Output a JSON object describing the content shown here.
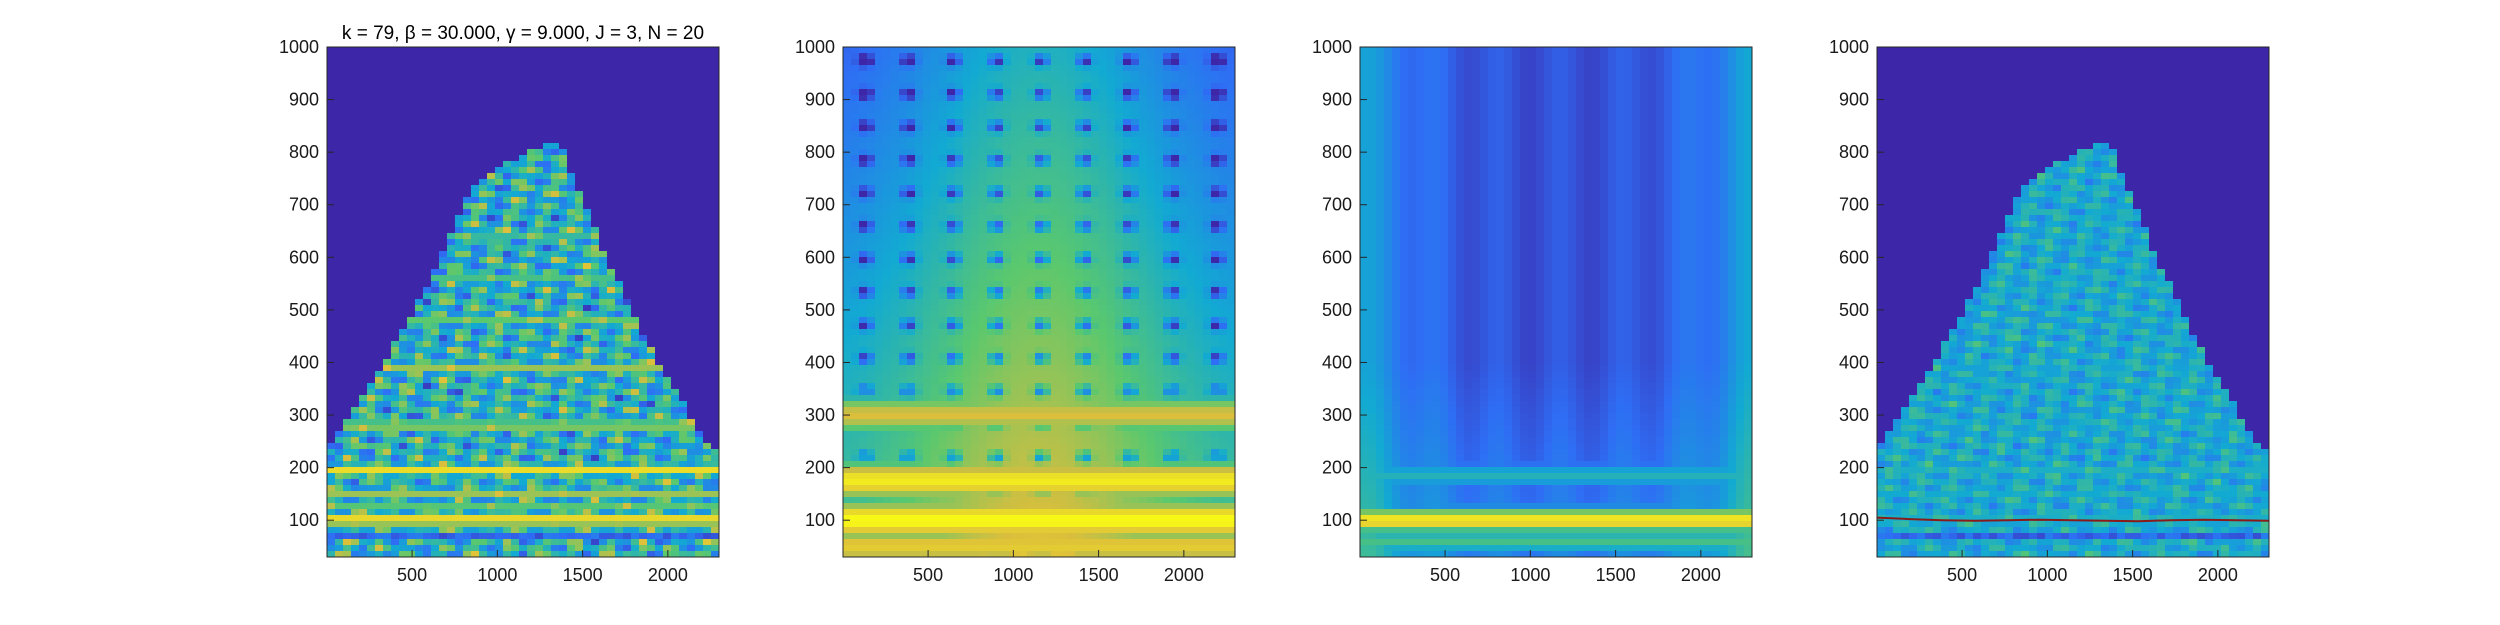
{
  "figure": {
    "title": "k = 79, β = 30.000, γ = 9.000, J = 3, N = 20"
  },
  "colors": {
    "low": "#3e26a8",
    "mid_low": "#2e87f7",
    "mid": "#1ab7b9",
    "mid_high": "#9dc937",
    "high": "#f9fb15"
  },
  "chart_data": [
    {
      "type": "heatmap",
      "panel": "panel-1",
      "title": "k = 79, β = 30.000, γ = 9.000, J = 3, N = 20",
      "xlabel": "",
      "ylabel": "",
      "xlim": [
        1,
        2300
      ],
      "ylim": [
        30,
        1000
      ],
      "xticks": [
        500,
        1000,
        1500,
        2000
      ],
      "yticks": [
        100,
        200,
        300,
        400,
        500,
        600,
        700,
        800,
        900,
        1000
      ],
      "colormap": "parula",
      "description_pattern": "pyramid",
      "bands": [
        {
          "y": 70,
          "level": 0.2
        },
        {
          "y": 85,
          "level": 0.4
        },
        {
          "y": 100,
          "level": 1.0
        },
        {
          "y": 125,
          "level": 0.6
        },
        {
          "y": 150,
          "level": 0.7
        },
        {
          "y": 195,
          "level": 0.9
        },
        {
          "y": 280,
          "level": 0.75
        },
        {
          "y": 390,
          "level": 0.7
        },
        {
          "y": 480,
          "level": 0.6
        },
        {
          "y": 560,
          "level": 0.55
        },
        {
          "y": 640,
          "level": 0.5
        }
      ]
    },
    {
      "type": "heatmap",
      "panel": "panel-2",
      "title": "",
      "xlabel": "",
      "ylabel": "",
      "xlim": [
        1,
        2300
      ],
      "ylim": [
        30,
        1000
      ],
      "xticks": [
        500,
        1000,
        1500,
        2000
      ],
      "yticks": [
        100,
        200,
        300,
        400,
        500,
        600,
        700,
        800,
        900,
        1000
      ],
      "colormap": "parula",
      "description_pattern": "smooth",
      "bands": [
        {
          "y": 50,
          "level": 0.85
        },
        {
          "y": 100,
          "level": 1.0
        },
        {
          "y": 175,
          "level": 0.95
        },
        {
          "y": 300,
          "level": 0.8
        }
      ]
    },
    {
      "type": "heatmap",
      "panel": "panel-3",
      "title": "",
      "xlabel": "",
      "ylabel": "",
      "xlim": [
        1,
        2300
      ],
      "ylim": [
        30,
        1000
      ],
      "xticks": [
        500,
        1000,
        1500,
        2000
      ],
      "yticks": [
        100,
        200,
        300,
        400,
        500,
        600,
        700,
        800,
        900,
        1000
      ],
      "colormap": "parula",
      "description_pattern": "vertical-fade",
      "bands": [
        {
          "y": 60,
          "level": 0.55
        },
        {
          "y": 100,
          "level": 0.95
        },
        {
          "y": 185,
          "level": 0.45
        }
      ]
    },
    {
      "type": "heatmap",
      "panel": "panel-4",
      "title": "",
      "xlabel": "",
      "ylabel": "",
      "xlim": [
        1,
        2300
      ],
      "ylim": [
        30,
        1000
      ],
      "xticks": [
        500,
        1000,
        1500,
        2000
      ],
      "yticks": [
        100,
        200,
        300,
        400,
        500,
        600,
        700,
        800,
        900,
        1000
      ],
      "colormap": "parula",
      "description_pattern": "pyramid-dim",
      "ridge_line": {
        "color": "#8b1a1a",
        "y": [
          105,
          102,
          100,
          99,
          100,
          101,
          100,
          99,
          98,
          100,
          101,
          100,
          99
        ]
      },
      "bands": [
        {
          "y": 70,
          "level": 0.15
        },
        {
          "y": 100,
          "level": 0.55
        },
        {
          "y": 150,
          "level": 0.45
        },
        {
          "y": 195,
          "level": 0.5
        },
        {
          "y": 280,
          "level": 0.4
        },
        {
          "y": 390,
          "level": 0.38
        },
        {
          "y": 480,
          "level": 0.32
        },
        {
          "y": 560,
          "level": 0.3
        }
      ]
    }
  ]
}
